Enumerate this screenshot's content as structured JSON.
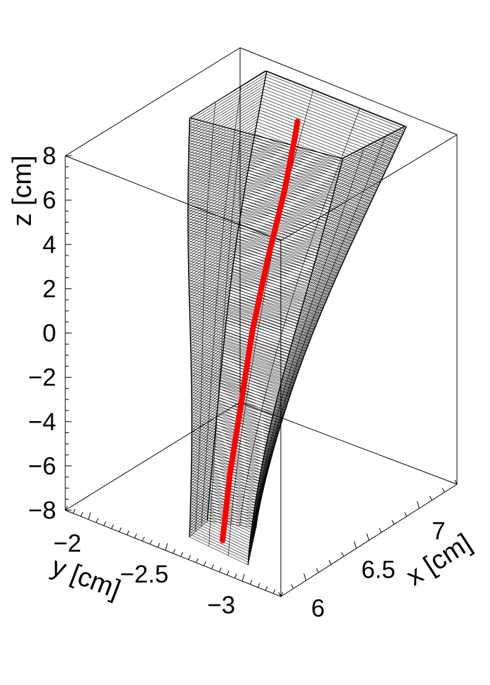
{
  "chart_data": {
    "type": "3d-surface-with-track",
    "title": "",
    "axes": {
      "x": {
        "label": "x [cm]",
        "ticks": [
          "6",
          "6.5",
          "7"
        ],
        "tick_values": [
          6,
          6.5,
          7
        ],
        "range": [
          5.82,
          7.28
        ]
      },
      "y": {
        "label": "y [cm]",
        "ticks": [
          "−2",
          "−2.5",
          "−3"
        ],
        "tick_values": [
          -2,
          -2.5,
          -3
        ],
        "range": [
          -1.85,
          -3.25
        ]
      },
      "z": {
        "label": "z [cm]",
        "ticks": [
          "8",
          "6",
          "4",
          "2",
          "0",
          "−2",
          "−4",
          "−6",
          "−8"
        ],
        "tick_values": [
          8,
          6,
          4,
          2,
          0,
          -2,
          -4,
          -6,
          -8
        ],
        "range": [
          -8,
          8
        ]
      }
    },
    "series": [
      {
        "kind": "surface-mesh",
        "color": "#000000",
        "description_in_data": false,
        "bottom_z": -8,
        "top_z": 9.5
      },
      {
        "kind": "track-line",
        "color": "#ff0000",
        "points": [
          {
            "x": 6.26,
            "y": -2.95,
            "z": -8.9
          },
          {
            "x": 6.3,
            "y": -2.92,
            "z": -6.0
          },
          {
            "x": 6.38,
            "y": -2.86,
            "z": -3.0
          },
          {
            "x": 6.46,
            "y": -2.8,
            "z": 0.0
          },
          {
            "x": 6.55,
            "y": -2.74,
            "z": 3.0
          },
          {
            "x": 6.65,
            "y": -2.68,
            "z": 6.0
          },
          {
            "x": 6.72,
            "y": -2.62,
            "z": 8.3
          },
          {
            "x": 6.74,
            "y": -2.6,
            "z": 9.0
          }
        ]
      }
    ]
  }
}
